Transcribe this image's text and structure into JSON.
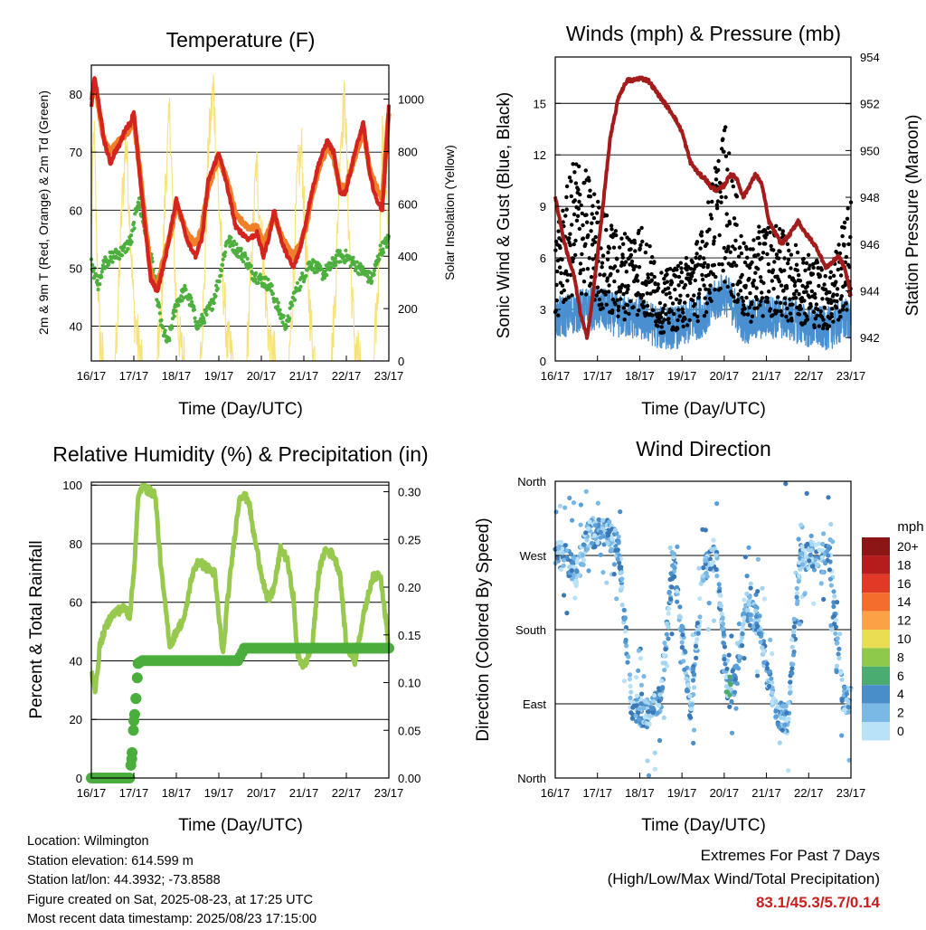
{
  "x_ticks": [
    "16/17",
    "17/17",
    "18/17",
    "19/17",
    "20/17",
    "21/17",
    "22/17",
    "23/17"
  ],
  "x_label": "Time (Day/UTC)",
  "colors": {
    "red": "#d4241e",
    "orange": "#f07f2a",
    "green": "#4caf3e",
    "yellow": "#f7e27a",
    "black": "#000000",
    "blue": "#4a90d0",
    "maroon": "#a31b1b",
    "rh_line": "#96c94e",
    "precip": "#4aae3c",
    "extreme_text": "#c8201e"
  },
  "charts": {
    "temp": {
      "title": "Temperature (F)",
      "ylabel_left": "2m & 9m T (Red, Orange) & 2m Td (Green)",
      "ylabel_right": "Solar Insolation (Yellow)"
    },
    "wind": {
      "title": "Winds (mph) & Pressure (mb)",
      "ylabel_left": "Sonic Wind & Gust (Blue, Black)",
      "ylabel_right": "Station Pressure (Maroon)"
    },
    "rh": {
      "title": "Relative Humidity (%) & Precipitation (in)",
      "ylabel_left": "Percent & Total Rainfall"
    },
    "dir": {
      "title": "Wind Direction",
      "ylabel_left": "Direction (Colored By Speed)",
      "legend_title": "mph"
    }
  },
  "chart_data": [
    {
      "type": "line",
      "title": "Temperature (F)",
      "x": [
        "16/17",
        "17/17",
        "18/17",
        "19/17",
        "20/17",
        "21/17",
        "22/17",
        "23/17"
      ],
      "xlabel": "Time (Day/UTC)",
      "ylabel": "2m & 9m T (Red, Orange) & 2m Td (Green)",
      "ylabel_right": "Solar Insolation (Yellow)",
      "ylim": [
        34,
        85
      ],
      "y_ticks": [
        40,
        50,
        60,
        70,
        80
      ],
      "ylim_right": [
        0,
        1130
      ],
      "y_ticks_right": [
        0,
        200,
        400,
        600,
        800,
        1000
      ],
      "series": [
        {
          "color": "#d4241e",
          "axis": "left",
          "x": [
            0,
            0.08,
            0.3,
            0.45,
            0.55,
            0.65,
            0.8,
            0.92,
            1.0,
            1.15,
            1.4,
            1.55,
            1.75,
            1.9,
            2.0,
            2.25,
            2.45,
            2.6,
            2.75,
            3.0,
            3.2,
            3.4,
            3.55,
            3.7,
            3.9,
            4.05,
            4.2,
            4.3,
            4.5,
            4.75,
            4.9,
            5.05,
            5.15,
            5.35,
            5.55,
            5.7,
            5.85,
            5.98,
            6.2,
            6.4,
            6.55,
            6.7,
            6.85,
            7.0
          ],
          "values": [
            78,
            83,
            72,
            68,
            70,
            71,
            74,
            75,
            77,
            65,
            48,
            46,
            52,
            58,
            62,
            55,
            52,
            55,
            65,
            70,
            64,
            57,
            56,
            55,
            56,
            52,
            56,
            60,
            54,
            50,
            53,
            58,
            62,
            68,
            72,
            70,
            63,
            63,
            70,
            75,
            66,
            62,
            60,
            78
          ]
        },
        {
          "color": "#f07f2a",
          "axis": "left",
          "x": [
            0,
            0.08,
            0.3,
            0.45,
            0.55,
            0.65,
            0.8,
            0.92,
            1.0,
            1.15,
            1.4,
            1.55,
            1.75,
            1.9,
            2.0,
            2.25,
            2.45,
            2.6,
            2.75,
            3.0,
            3.2,
            3.4,
            3.55,
            3.7,
            3.9,
            4.05,
            4.2,
            4.3,
            4.5,
            4.75,
            4.9,
            5.05,
            5.15,
            5.35,
            5.55,
            5.7,
            5.85,
            5.98,
            6.2,
            6.4,
            6.55,
            6.7,
            6.85,
            7.0
          ],
          "values": [
            79,
            82,
            72,
            70,
            71,
            72,
            73,
            74,
            76,
            66,
            49,
            47,
            53,
            57,
            61,
            56,
            54,
            57,
            64,
            69,
            65,
            59,
            58,
            57,
            57,
            54,
            57,
            59,
            55,
            52,
            54,
            57,
            61,
            67,
            71,
            69,
            64,
            64,
            69,
            74,
            67,
            64,
            62,
            77
          ]
        },
        {
          "color": "#4caf3e",
          "axis": "left",
          "x": [
            0,
            0.15,
            0.3,
            0.5,
            0.75,
            0.95,
            1.1,
            1.25,
            1.45,
            1.65,
            1.8,
            2.0,
            2.2,
            2.35,
            2.5,
            2.7,
            2.85,
            3.0,
            3.2,
            3.45,
            3.6,
            3.8,
            4.0,
            4.2,
            4.45,
            4.6,
            4.75,
            4.95,
            5.15,
            5.3,
            5.45,
            5.6,
            5.8,
            6.0,
            6.3,
            6.6,
            6.8,
            7.0
          ],
          "values": [
            51,
            47,
            51,
            52,
            53,
            55,
            62,
            57,
            50,
            40,
            37,
            44,
            46,
            44,
            40,
            42,
            44,
            48,
            55,
            53,
            52,
            49,
            48,
            47,
            42,
            40,
            45,
            48,
            51,
            50,
            49,
            50,
            52,
            52,
            50,
            48,
            53,
            55
          ]
        },
        {
          "color": "#f7e27a",
          "axis": "right",
          "x": [
            0.0,
            0.06,
            0.12,
            0.2,
            0.28,
            0.4,
            0.55,
            0.63,
            0.72,
            0.82,
            0.93,
            1.0,
            1.12,
            1.22,
            1.35,
            1.55,
            1.65,
            1.75,
            1.85,
            1.93,
            2.0,
            2.1,
            2.2,
            2.35,
            2.55,
            2.65,
            2.75,
            2.87,
            3.0,
            3.1,
            3.2,
            3.35,
            3.55,
            3.65,
            3.75,
            3.88,
            4.0,
            4.1,
            4.2,
            4.35,
            4.55,
            4.65,
            4.75,
            4.85,
            4.95,
            5.05,
            5.15,
            5.22,
            5.35,
            5.55,
            5.65,
            5.75,
            5.86,
            5.97,
            6.06,
            6.15,
            6.22,
            6.35,
            6.55,
            6.65,
            6.75,
            6.85,
            6.95,
            7.0
          ],
          "values": [
            500,
            900,
            500,
            80,
            0,
            0,
            0,
            200,
            600,
            850,
            450,
            200,
            40,
            0,
            0,
            0,
            200,
            700,
            950,
            500,
            220,
            50,
            0,
            0,
            0,
            250,
            800,
            1050,
            600,
            300,
            60,
            0,
            0,
            0,
            300,
            750,
            500,
            250,
            40,
            0,
            0,
            0,
            280,
            700,
            800,
            400,
            180,
            30,
            0,
            0,
            0,
            300,
            850,
            1000,
            500,
            200,
            30,
            0,
            0,
            0,
            300,
            850,
            600,
            300
          ]
        }
      ]
    },
    {
      "type": "scatter",
      "title": "Winds (mph) & Pressure (mb)",
      "x": [
        "16/17",
        "17/17",
        "18/17",
        "19/17",
        "20/17",
        "21/17",
        "22/17",
        "23/17"
      ],
      "xlabel": "Time (Day/UTC)",
      "ylabel": "Sonic Wind & Gust (Blue, Black)",
      "ylabel_right": "Station Pressure (Maroon)",
      "ylim": [
        0,
        17.7
      ],
      "y_ticks": [
        0,
        3,
        6,
        9,
        12,
        15
      ],
      "ylim_right": [
        941.0,
        954.0
      ],
      "y_ticks_right": [
        942,
        944,
        946,
        948,
        950,
        952,
        954
      ],
      "series": [
        {
          "name": "Sonic Wind",
          "color": "#4a90d0",
          "x": [
            0,
            0.5,
            1.0,
            1.5,
            2.0,
            2.5,
            3.0,
            3.5,
            4.0,
            4.5,
            5.0,
            5.5,
            6.0,
            6.5,
            7.0
          ],
          "values": [
            2.4,
            2.9,
            3.1,
            2.6,
            2.5,
            1.9,
            2.0,
            2.7,
            4.0,
            2.2,
            2.6,
            2.5,
            2.0,
            1.9,
            2.6
          ]
        },
        {
          "name": "Gust",
          "color": "#000000",
          "x": [
            0,
            0.5,
            1.0,
            1.5,
            2.0,
            2.5,
            3.0,
            3.5,
            4.0,
            4.5,
            5.0,
            5.5,
            6.0,
            6.5,
            7.0
          ],
          "values": [
            4.5,
            7.8,
            6.0,
            4.6,
            5.2,
            3.2,
            3.6,
            4.9,
            8.8,
            4.1,
            5.3,
            4.6,
            4.0,
            3.4,
            6.0
          ]
        },
        {
          "name": "Station Pressure",
          "color": "#a31b1b",
          "axis": "right",
          "x": [
            0,
            0.2,
            0.3,
            0.45,
            0.6,
            0.75,
            0.85,
            1.0,
            1.15,
            1.3,
            1.5,
            1.7,
            1.85,
            2.0,
            2.2,
            2.4,
            2.6,
            2.8,
            3.0,
            3.2,
            3.4,
            3.55,
            3.7,
            3.85,
            4.0,
            4.15,
            4.3,
            4.45,
            4.6,
            4.75,
            4.9,
            5.05,
            5.2,
            5.35,
            5.55,
            5.75,
            5.9,
            6.05,
            6.2,
            6.4,
            6.55,
            6.7,
            6.85,
            7.0
          ],
          "values": [
            948.0,
            946.2,
            945.5,
            944.6,
            943.0,
            942.0,
            943.2,
            945.5,
            948.0,
            950.5,
            952.3,
            953.0,
            953.0,
            953.1,
            953.0,
            952.5,
            952.0,
            951.5,
            950.8,
            949.5,
            949.0,
            948.8,
            948.4,
            948.3,
            948.5,
            949.0,
            948.8,
            948.0,
            948.5,
            949.0,
            948.5,
            947.0,
            946.5,
            946.0,
            946.4,
            947.0,
            946.5,
            946.2,
            945.8,
            945.0,
            945.2,
            945.5,
            945.0,
            943.8
          ]
        }
      ]
    },
    {
      "type": "line",
      "title": "Relative Humidity (%) & Precipitation (in)",
      "x": [
        "16/17",
        "17/17",
        "18/17",
        "19/17",
        "20/17",
        "21/17",
        "22/17",
        "23/17"
      ],
      "xlabel": "Time (Day/UTC)",
      "ylabel": "Percent & Total Rainfall",
      "ylim": [
        0,
        101
      ],
      "y_ticks": [
        0,
        20,
        40,
        60,
        80,
        100
      ],
      "ylim_right": [
        0,
        0.31
      ],
      "y_ticks_right": [
        "0.00",
        "0.05",
        "0.10",
        "0.15",
        "0.20",
        "0.25",
        "0.30"
      ],
      "series": [
        {
          "name": "RH",
          "color": "#96c94e",
          "x": [
            0,
            0.1,
            0.2,
            0.3,
            0.45,
            0.6,
            0.8,
            0.9,
            1.0,
            1.1,
            1.2,
            1.35,
            1.5,
            1.65,
            1.85,
            2.0,
            2.2,
            2.35,
            2.5,
            2.7,
            2.9,
            3.0,
            3.1,
            3.2,
            3.35,
            3.5,
            3.7,
            3.8,
            4.0,
            4.15,
            4.3,
            4.45,
            4.6,
            4.75,
            4.85,
            5.0,
            5.2,
            5.35,
            5.5,
            5.7,
            5.85,
            6.0,
            6.2,
            6.4,
            6.6,
            6.8,
            7.0
          ],
          "values": [
            36,
            30,
            45,
            50,
            55,
            57,
            58,
            55,
            70,
            95,
            100,
            98,
            97,
            70,
            45,
            50,
            55,
            68,
            74,
            72,
            70,
            55,
            42,
            60,
            80,
            97,
            95,
            85,
            70,
            60,
            65,
            78,
            75,
            62,
            42,
            38,
            45,
            70,
            78,
            76,
            70,
            45,
            40,
            55,
            68,
            70,
            45
          ]
        },
        {
          "name": "Precipitation",
          "color": "#4aae3c",
          "axis": "right",
          "x": [
            0,
            0.9,
            0.92,
            0.95,
            0.98,
            1.0,
            1.03,
            1.06,
            1.1,
            1.2,
            3.45,
            3.6,
            7.0
          ],
          "values": [
            0,
            0,
            0.01,
            0.02,
            0.04,
            0.06,
            0.07,
            0.09,
            0.12,
            0.123,
            0.123,
            0.136,
            0.136
          ]
        }
      ]
    },
    {
      "type": "scatter",
      "title": "Wind Direction",
      "x": [
        "16/17",
        "17/17",
        "18/17",
        "19/17",
        "20/17",
        "21/17",
        "22/17",
        "23/17"
      ],
      "xlabel": "Time (Day/UTC)",
      "ylabel": "Direction (Colored By Speed)",
      "y_ticks": [
        "North",
        "East",
        "South",
        "West",
        "North"
      ],
      "ylim": [
        0,
        360
      ],
      "legend_title": "mph",
      "legend": [
        "20+",
        "18",
        "16",
        "14",
        "12",
        "10",
        "8",
        "6",
        "4",
        "2",
        "0"
      ],
      "legend_colors": [
        "#8c1616",
        "#b71c1c",
        "#e03a26",
        "#f46d2c",
        "#fca246",
        "#e9dd53",
        "#8ec94b",
        "#4aac6e",
        "#4a8ec9",
        "#7ab8e6",
        "#b9e1f7"
      ],
      "series": [
        {
          "name": "Wind direction (deg)",
          "x": [
            0.2,
            0.5,
            0.8,
            1.2,
            1.5,
            1.8,
            2.1,
            2.5,
            2.8,
            3.2,
            3.5,
            3.8,
            4.1,
            4.3,
            4.5,
            4.8,
            5.2,
            5.5,
            5.8,
            6.1,
            6.5,
            6.8
          ],
          "values": [
            270,
            250,
            295,
            300,
            280,
            90,
            75,
            95,
            270,
            80,
            250,
            270,
            100,
            125,
            210,
            190,
            80,
            70,
            265,
            270,
            265,
            95
          ]
        }
      ]
    }
  ],
  "info": {
    "location": "Location: Wilmington",
    "elevation": "Station elevation: 614.599 m",
    "latlon": "Station lat/lon: 44.3932; -73.8588",
    "created": "Figure created on Sat, 2025-08-23, at 17:25 UTC",
    "recent": "Most recent data timestamp: 2025/08/23 17:15:00"
  },
  "extremes": {
    "title": "Extremes For Past 7 Days",
    "subtitle": "(High/Low/Max Wind/Total Precipitation)",
    "values": "83.1/45.3/5.7/0.14"
  }
}
